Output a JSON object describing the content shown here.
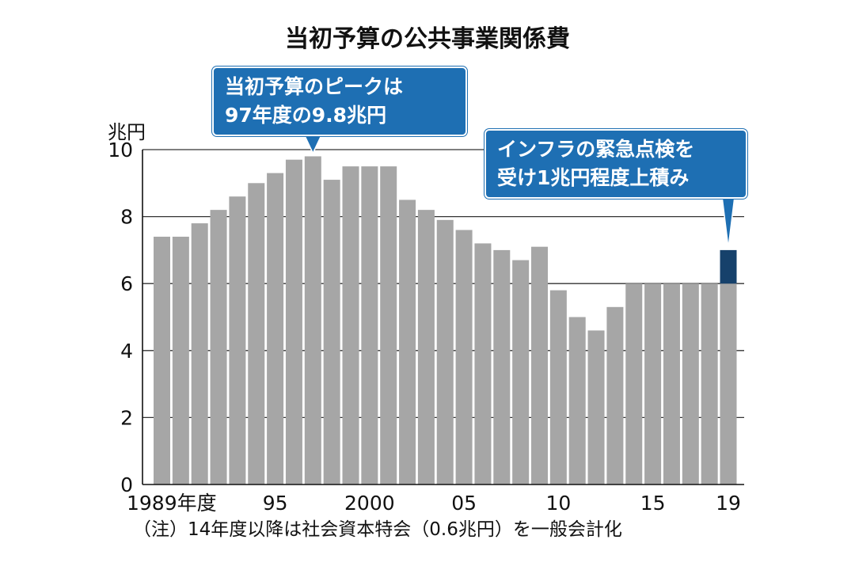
{
  "chart_data": {
    "type": "bar",
    "title": "当初予算の公共事業関係費",
    "ylabel": "兆円",
    "xlabel": "",
    "ylim": [
      0,
      10
    ],
    "y_ticks": [
      "0",
      "2",
      "4",
      "6",
      "8",
      "10"
    ],
    "grid": true,
    "categories": [
      "1989",
      "1990",
      "1991",
      "1992",
      "1993",
      "1994",
      "1995",
      "1996",
      "1997",
      "1998",
      "1999",
      "2000",
      "2001",
      "2002",
      "2003",
      "2004",
      "2005",
      "2006",
      "2007",
      "2008",
      "2009",
      "2010",
      "2011",
      "2012",
      "2013",
      "2014",
      "2015",
      "2016",
      "2017",
      "2018",
      "2019"
    ],
    "values": [
      7.4,
      7.4,
      7.8,
      8.2,
      8.6,
      9.0,
      9.3,
      9.7,
      9.8,
      9.1,
      9.5,
      9.5,
      9.5,
      8.5,
      8.2,
      7.9,
      7.6,
      7.2,
      7.0,
      6.7,
      7.1,
      5.8,
      5.0,
      4.6,
      5.3,
      6.0,
      6.0,
      6.0,
      6.0,
      6.0,
      6.0
    ],
    "highlight": {
      "category": "2019",
      "base": 6.0,
      "top": 7.0,
      "color": "#16416b"
    },
    "x_tick_labels": [
      {
        "category": "1989",
        "label": "1989年度"
      },
      {
        "category": "1995",
        "label": "95"
      },
      {
        "category": "2000",
        "label": "2000"
      },
      {
        "category": "2005",
        "label": "05"
      },
      {
        "category": "2010",
        "label": "10"
      },
      {
        "category": "2015",
        "label": "15"
      },
      {
        "category": "2019",
        "label": "19"
      }
    ],
    "annotations": [
      {
        "id": "peak",
        "target": "1997",
        "lines": [
          "当初予算のピークは",
          "97年度の9.8兆円"
        ]
      },
      {
        "id": "infra",
        "target": "2019",
        "lines": [
          "インフラの緊急点検を",
          "受け1兆円程度上積み"
        ]
      }
    ],
    "note": "（注）14年度以降は社会資本特会（0.6兆円）を一般会計化"
  },
  "colors": {
    "bar": "#a6a6a6",
    "highlight": "#16416b",
    "callout": "#1e6fb3",
    "grid": "#333333"
  }
}
